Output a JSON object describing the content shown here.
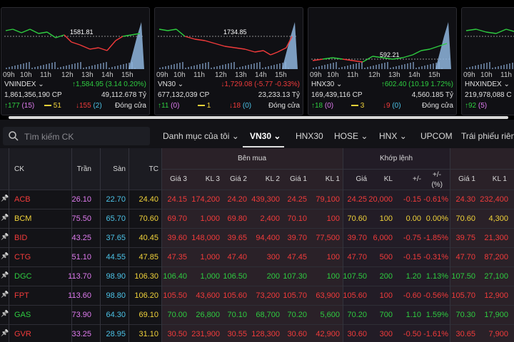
{
  "colors": {
    "up": "#2ecc40",
    "down": "#f23b3b",
    "ref": "#f0d23a",
    "ceil": "#e07cf0",
    "floor": "#4cc3e8",
    "accent": "#1a9fe0"
  },
  "index_cards": [
    {
      "name": "VNINDEX",
      "ref_label": "1581.81",
      "change_label": "↑1,584.95 (3.14 0.20%)",
      "change_dir": "up",
      "volume": "1,861,356,190 CP",
      "value": "49,112.678 Tỷ",
      "up": "↑177",
      "up_ceil": "(15)",
      "ref": "51",
      "down": "↓155",
      "down_floor": "(2)",
      "status": "Đóng cửa"
    },
    {
      "name": "VN30",
      "ref_label": "1734.85",
      "change_label": "↓1,729.08 (-5.77 -0.33%)",
      "change_dir": "down",
      "volume": "677,132,039 CP",
      "value": "23,233.13 Tỷ",
      "up": "↑11",
      "up_ceil": "(0)",
      "ref": "1",
      "down": "↓18",
      "down_floor": "(0)",
      "status": "Đóng cửa"
    },
    {
      "name": "HNX30",
      "ref_label": "592.21",
      "change_label": "↑602.40 (10.19 1.72%)",
      "change_dir": "up",
      "volume": "169,439,116 CP",
      "value": "4,560.185 Tỷ",
      "up": "↑18",
      "up_ceil": "(0)",
      "ref": "3",
      "down": "↓9",
      "down_floor": "(0)",
      "status": "Đóng cửa"
    },
    {
      "name": "HNXINDEX",
      "ref_label": "",
      "change_label": "",
      "change_dir": "up",
      "volume": "219,978,088 C",
      "value": "",
      "up": "↑92",
      "up_ceil": "(5)",
      "ref": "",
      "down": "",
      "down_floor": "",
      "status": ""
    }
  ],
  "time_ticks": [
    "09h",
    "10h",
    "11h",
    "12h",
    "13h",
    "14h",
    "15h"
  ],
  "search": {
    "placeholder": "Tìm kiếm CK"
  },
  "tabs": [
    "Danh mục của tôi",
    "VN30",
    "HNX30",
    "HOSE",
    "HNX",
    "UPCOM",
    "Trái phiếu riêng"
  ],
  "table": {
    "headers": {
      "ck": "CK",
      "tran": "Trần",
      "san": "Sàn",
      "tc": "TC",
      "ben_mua": "Bên mua",
      "khop_lenh": "Khớp lệnh",
      "gia3": "Giá 3",
      "kl3": "KL 3",
      "gia2": "Giá 2",
      "kl2": "KL 2",
      "gia1": "Giá 1",
      "kl1": "KL 1",
      "gia": "Giá",
      "kl": "KL",
      "pm": "+/-",
      "pm_pct": "+/-",
      "pct": "(%)",
      "ban_gia1": "Giá 1",
      "ban_kl1": "KL 1"
    },
    "rows": [
      {
        "ck": "ACB",
        "dir": "down",
        "tran": "26.10",
        "san": "22.70",
        "tc": "24.40",
        "b3": "24.15",
        "k3": "174,200",
        "b2": "24.20",
        "k2": "439,300",
        "b1": "24.25",
        "k1": "79,100",
        "gia": "24.25",
        "kl": "20,000",
        "pm": "-0.15",
        "pct": "-0.61%",
        "s1": "24.30",
        "sk1": "232,400"
      },
      {
        "ck": "BCM",
        "dir": "ref",
        "tran": "75.50",
        "san": "65.70",
        "tc": "70.60",
        "b3": "69.70",
        "k3": "1,000",
        "b2": "69.80",
        "k2": "2,400",
        "b1": "70.10",
        "k1": "100",
        "gia": "70.60",
        "kl": "100",
        "pm": "0.00",
        "pct": "0.00%",
        "s1": "70.60",
        "sk1": "4,300"
      },
      {
        "ck": "BID",
        "dir": "down",
        "tran": "43.25",
        "san": "37.65",
        "tc": "40.45",
        "b3": "39.60",
        "k3": "148,000",
        "b2": "39.65",
        "k2": "94,400",
        "b1": "39.70",
        "k1": "77,500",
        "gia": "39.70",
        "kl": "6,000",
        "pm": "-0.75",
        "pct": "-1.85%",
        "s1": "39.75",
        "sk1": "21,300"
      },
      {
        "ck": "CTG",
        "dir": "down",
        "tran": "51.10",
        "san": "44.55",
        "tc": "47.85",
        "b3": "47.35",
        "k3": "1,000",
        "b2": "47.40",
        "k2": "300",
        "b1": "47.45",
        "k1": "100",
        "gia": "47.70",
        "kl": "500",
        "pm": "-0.15",
        "pct": "-0.31%",
        "s1": "47.70",
        "sk1": "87,200"
      },
      {
        "ck": "DGC",
        "dir": "up",
        "tran": "113.70",
        "san": "98.90",
        "tc": "106.30",
        "b3": "106.40",
        "k3": "1,000",
        "b2": "106.50",
        "k2": "200",
        "b1": "107.30",
        "k1": "100",
        "gia": "107.50",
        "kl": "200",
        "pm": "1.20",
        "pct": "1.13%",
        "s1": "107.50",
        "sk1": "27,100"
      },
      {
        "ck": "FPT",
        "dir": "down",
        "tran": "113.60",
        "san": "98.80",
        "tc": "106.20",
        "b3": "105.50",
        "k3": "43,600",
        "b2": "105.60",
        "k2": "73,200",
        "b1": "105.70",
        "k1": "63,900",
        "gia": "105.60",
        "kl": "100",
        "pm": "-0.60",
        "pct": "-0.56%",
        "s1": "105.70",
        "sk1": "12,900"
      },
      {
        "ck": "GAS",
        "dir": "up",
        "tran": "73.90",
        "san": "64.30",
        "tc": "69.10",
        "b3": "70.00",
        "k3": "26,800",
        "b2": "70.10",
        "k2": "68,700",
        "b1": "70.20",
        "k1": "5,600",
        "gia": "70.20",
        "kl": "700",
        "pm": "1.10",
        "pct": "1.59%",
        "s1": "70.30",
        "sk1": "17,900"
      },
      {
        "ck": "GVR",
        "dir": "down",
        "tran": "33.25",
        "san": "28.95",
        "tc": "31.10",
        "b3": "30.50",
        "k3": "231,900",
        "b2": "30.55",
        "k2": "128,300",
        "b1": "30.60",
        "k1": "42,900",
        "gia": "30.60",
        "kl": "300",
        "pm": "-0.50",
        "pct": "-1.61%",
        "s1": "30.65",
        "sk1": "7,900"
      }
    ]
  }
}
